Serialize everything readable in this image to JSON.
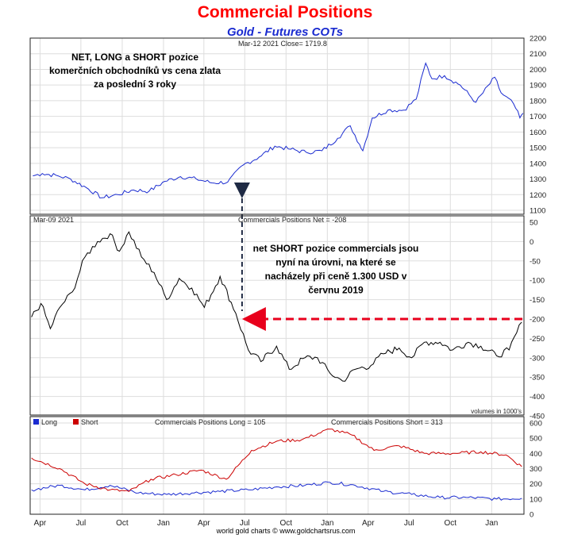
{
  "header": {
    "title": "Commercial Positions",
    "subtitle": "Gold - Futures COTs"
  },
  "chart_data": [
    {
      "panel": "price",
      "type": "line",
      "title": "",
      "info_label": "Mar-12  2021   Close= 1719.8",
      "annotation": "NET, LONG a SHORT pozice\nkomerčních obchodníků vs cena zlata\nza poslední 3 roky",
      "y_ticks": [
        1100,
        1200,
        1300,
        1400,
        1500,
        1600,
        1700,
        1800,
        1900,
        2000,
        2100,
        2200
      ],
      "ylim": [
        1100,
        2200
      ],
      "series": [
        {
          "color": "#1a2bd0",
          "points": [
            [
              "2018-03-16",
              1320
            ],
            [
              "2018-04-06",
              1335
            ],
            [
              "2018-05-11",
              1320
            ],
            [
              "2018-06-08",
              1300
            ],
            [
              "2018-07-13",
              1245
            ],
            [
              "2018-08-17",
              1180
            ],
            [
              "2018-09-21",
              1200
            ],
            [
              "2018-10-26",
              1230
            ],
            [
              "2018-11-30",
              1222
            ],
            [
              "2019-01-04",
              1285
            ],
            [
              "2019-02-08",
              1315
            ],
            [
              "2019-03-15",
              1300
            ],
            [
              "2019-04-19",
              1275
            ],
            [
              "2019-05-24",
              1280
            ],
            [
              "2019-06-28",
              1390
            ],
            [
              "2019-08-02",
              1440
            ],
            [
              "2019-09-06",
              1510
            ],
            [
              "2019-10-11",
              1490
            ],
            [
              "2019-11-15",
              1470
            ],
            [
              "2019-12-20",
              1480
            ],
            [
              "2020-01-24",
              1560
            ],
            [
              "2020-02-21",
              1640
            ],
            [
              "2020-03-13",
              1520
            ],
            [
              "2020-03-20",
              1480
            ],
            [
              "2020-04-10",
              1690
            ],
            [
              "2020-05-15",
              1740
            ],
            [
              "2020-06-19",
              1740
            ],
            [
              "2020-07-17",
              1810
            ],
            [
              "2020-08-07",
              2040
            ],
            [
              "2020-08-21",
              1940
            ],
            [
              "2020-09-18",
              1960
            ],
            [
              "2020-10-23",
              1900
            ],
            [
              "2020-11-27",
              1790
            ],
            [
              "2021-01-08",
              1950
            ],
            [
              "2021-01-22",
              1850
            ],
            [
              "2021-02-19",
              1780
            ],
            [
              "2021-03-05",
              1690
            ],
            [
              "2021-03-12",
              1720
            ]
          ]
        }
      ]
    },
    {
      "panel": "net",
      "type": "line",
      "title": "Commercials Positions Net = -208",
      "info_label": "Mar-09  2021",
      "annotation": "net SHORT pozice commercials jsou\nnyní na úrovni, na které se\nnacházely při ceně 1.300 USD v\nčervnu 2019",
      "y_ticks": [
        50,
        0,
        -50,
        -100,
        -150,
        -200,
        -250,
        -300,
        -350,
        -400,
        -450
      ],
      "ylim": [
        -450,
        50
      ],
      "series": [
        {
          "color": "#000000",
          "points": [
            [
              "2018-03-13",
              -195
            ],
            [
              "2018-04-03",
              -160
            ],
            [
              "2018-04-24",
              -225
            ],
            [
              "2018-05-15",
              -170
            ],
            [
              "2018-06-12",
              -130
            ],
            [
              "2018-07-10",
              -40
            ],
            [
              "2018-08-07",
              0
            ],
            [
              "2018-09-04",
              20
            ],
            [
              "2018-09-25",
              -25
            ],
            [
              "2018-10-16",
              25
            ],
            [
              "2018-11-13",
              -40
            ],
            [
              "2018-12-11",
              -80
            ],
            [
              "2019-01-08",
              -150
            ],
            [
              "2019-02-05",
              -95
            ],
            [
              "2019-03-05",
              -120
            ],
            [
              "2019-04-02",
              -170
            ],
            [
              "2019-05-07",
              -90
            ],
            [
              "2019-06-11",
              -185
            ],
            [
              "2019-07-09",
              -280
            ],
            [
              "2019-08-06",
              -310
            ],
            [
              "2019-09-10",
              -270
            ],
            [
              "2019-10-08",
              -330
            ],
            [
              "2019-11-12",
              -300
            ],
            [
              "2019-12-10",
              -300
            ],
            [
              "2020-01-07",
              -340
            ],
            [
              "2020-02-04",
              -360
            ],
            [
              "2020-03-03",
              -330
            ],
            [
              "2020-04-07",
              -320
            ],
            [
              "2020-05-05",
              -290
            ],
            [
              "2020-06-09",
              -275
            ],
            [
              "2020-07-07",
              -300
            ],
            [
              "2020-08-04",
              -260
            ],
            [
              "2020-09-08",
              -260
            ],
            [
              "2020-10-06",
              -280
            ],
            [
              "2020-11-10",
              -260
            ],
            [
              "2020-12-08",
              -270
            ],
            [
              "2021-01-12",
              -295
            ],
            [
              "2021-02-09",
              -280
            ],
            [
              "2021-03-09",
              -208
            ]
          ]
        }
      ]
    },
    {
      "panel": "long_short",
      "type": "line",
      "title": "",
      "long_label": "Commercials Positions Long = 105",
      "short_label": "Commercials Positions Short = 313",
      "volume_note": "volumes in 1000's",
      "y_ticks": [
        0,
        100,
        200,
        300,
        400,
        500,
        600
      ],
      "ylim": [
        0,
        600
      ],
      "series": [
        {
          "name": "Long",
          "color": "#1a2bd0",
          "points": [
            [
              "2018-03-13",
              160
            ],
            [
              "2018-05-15",
              190
            ],
            [
              "2018-07-10",
              160
            ],
            [
              "2018-09-04",
              190
            ],
            [
              "2018-11-06",
              140
            ],
            [
              "2019-01-08",
              130
            ],
            [
              "2019-03-05",
              140
            ],
            [
              "2019-05-07",
              150
            ],
            [
              "2019-07-09",
              160
            ],
            [
              "2019-09-10",
              180
            ],
            [
              "2019-11-12",
              190
            ],
            [
              "2020-01-07",
              210
            ],
            [
              "2020-03-03",
              190
            ],
            [
              "2020-05-05",
              150
            ],
            [
              "2020-07-07",
              130
            ],
            [
              "2020-09-08",
              110
            ],
            [
              "2020-11-10",
              110
            ],
            [
              "2021-01-12",
              100
            ],
            [
              "2021-03-09",
              105
            ]
          ]
        },
        {
          "name": "Short",
          "color": "#cc0000",
          "points": [
            [
              "2018-03-13",
              370
            ],
            [
              "2018-05-15",
              300
            ],
            [
              "2018-07-10",
              200
            ],
            [
              "2018-09-04",
              160
            ],
            [
              "2018-10-16",
              150
            ],
            [
              "2018-12-04",
              230
            ],
            [
              "2019-01-29",
              260
            ],
            [
              "2019-03-26",
              290
            ],
            [
              "2019-05-21",
              230
            ],
            [
              "2019-07-16",
              420
            ],
            [
              "2019-09-10",
              480
            ],
            [
              "2019-11-05",
              490
            ],
            [
              "2020-01-07",
              560
            ],
            [
              "2020-02-25",
              520
            ],
            [
              "2020-04-14",
              420
            ],
            [
              "2020-06-09",
              450
            ],
            [
              "2020-08-04",
              400
            ],
            [
              "2020-10-06",
              400
            ],
            [
              "2020-12-08",
              410
            ],
            [
              "2021-02-02",
              390
            ],
            [
              "2021-03-09",
              313
            ]
          ]
        }
      ]
    }
  ],
  "x_axis": {
    "ticks": [
      {
        "label": "Apr",
        "date": "2018-04-01"
      },
      {
        "label": "Jul",
        "date": "2018-07-01"
      },
      {
        "label": "Oct",
        "date": "2018-10-01"
      },
      {
        "label": "Jan",
        "date": "2019-01-01"
      },
      {
        "label": "Apr",
        "date": "2019-04-01"
      },
      {
        "label": "Jul",
        "date": "2019-07-01"
      },
      {
        "label": "Oct",
        "date": "2019-10-01"
      },
      {
        "label": "Jan",
        "date": "2020-01-01"
      },
      {
        "label": "Apr",
        "date": "2020-04-01"
      },
      {
        "label": "Jul",
        "date": "2020-07-01"
      },
      {
        "label": "Oct",
        "date": "2020-10-01"
      },
      {
        "label": "Jan",
        "date": "2021-01-01"
      }
    ],
    "range": [
      "2018-03-10",
      "2021-03-14"
    ]
  },
  "markers": {
    "vertical_date": "2019-06-25",
    "horizontal_level": -200
  },
  "footer": "world gold charts © www.goldchartsrus.com",
  "grid": true
}
